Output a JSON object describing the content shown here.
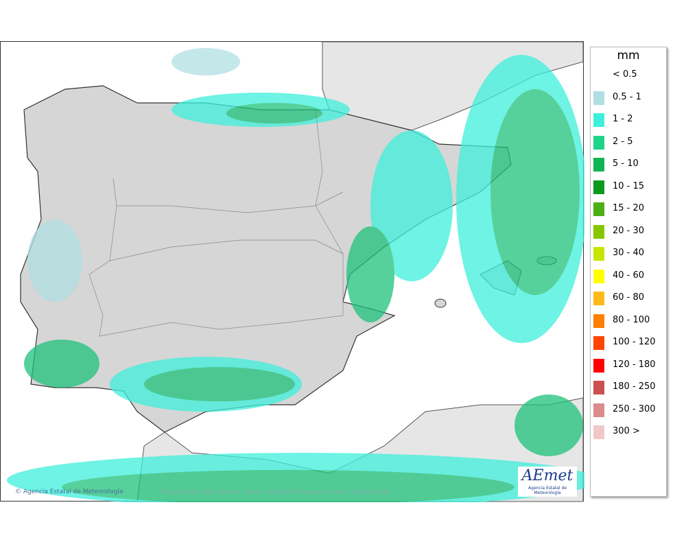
{
  "map": {
    "credit": "Agencia Estatal de Meteorología",
    "caption": "Precipitación 24h máxima. Válido: 20260323 Pasada modelo: 2026032100"
  },
  "logo": {
    "name": "AEmet",
    "subtitle": "Agencia Estatal de Meteorología"
  },
  "legend": {
    "unit": "mm",
    "items": [
      {
        "label": "< 0.5",
        "color": "#ffffff"
      },
      {
        "label": "0.5 - 1",
        "color": "#b0dfe3"
      },
      {
        "label": "1 - 2",
        "color": "#3ef0dc"
      },
      {
        "label": "2 - 5",
        "color": "#1ed38a"
      },
      {
        "label": "5 - 10",
        "color": "#0fb552"
      },
      {
        "label": "10 - 15",
        "color": "#0a9b1e"
      },
      {
        "label": "15 - 20",
        "color": "#4caf15"
      },
      {
        "label": "20 - 30",
        "color": "#86c800"
      },
      {
        "label": "30 - 40",
        "color": "#c6e600"
      },
      {
        "label": "40 - 60",
        "color": "#ffff00"
      },
      {
        "label": "60 - 80",
        "color": "#ffb91a"
      },
      {
        "label": "80 - 100",
        "color": "#ff7f00"
      },
      {
        "label": "100 - 120",
        "color": "#ff4500"
      },
      {
        "label": "120 - 180",
        "color": "#ff0000"
      },
      {
        "label": "180 - 250",
        "color": "#cc5050"
      },
      {
        "label": "250 - 300",
        "color": "#dc8c8c"
      },
      {
        "label": "300 >",
        "color": "#f0c8c8"
      }
    ]
  }
}
